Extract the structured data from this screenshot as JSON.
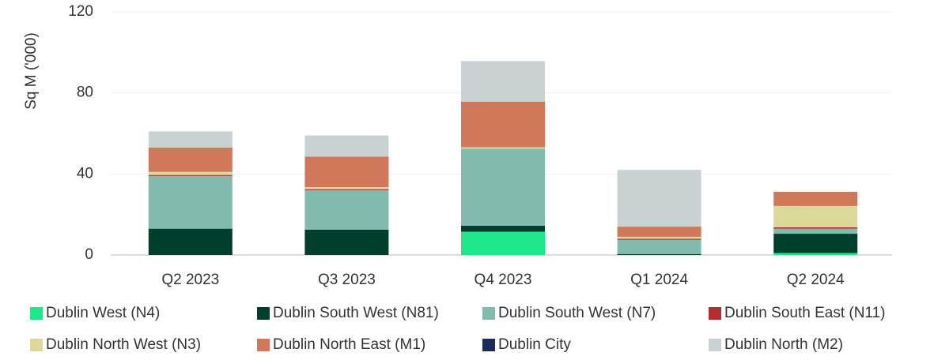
{
  "chart_data": {
    "type": "stacked_bar",
    "ylabel": "Sq M ('000)",
    "categories": [
      "Q2 2023",
      "Q3 2023",
      "Q4 2023",
      "Q1 2024",
      "Q2 2024"
    ],
    "series": [
      {
        "name": "Dublin West (N4)",
        "color": "#1de98b",
        "values": [
          0,
          0,
          11.5,
          0,
          1
        ]
      },
      {
        "name": "Dublin South West (N81)",
        "color": "#003f2d",
        "values": [
          13,
          12.5,
          3,
          0.5,
          9.5
        ]
      },
      {
        "name": "Dublin South West (N7)",
        "color": "#80bbad",
        "values": [
          26,
          19.5,
          38,
          7,
          2.5
        ]
      },
      {
        "name": "Dublin South East (N11)",
        "color": "#b32e2e",
        "values": [
          0.5,
          0.5,
          0,
          0.5,
          0.7
        ]
      },
      {
        "name": "Dublin North West (N3)",
        "color": "#dbd99a",
        "values": [
          1.5,
          1,
          0.7,
          1,
          10.5
        ]
      },
      {
        "name": "Dublin North East (M1)",
        "color": "#d2785a",
        "values": [
          12,
          15,
          22.5,
          5,
          7
        ]
      },
      {
        "name": "Dublin City",
        "color": "#1a2b5c",
        "values": [
          0,
          0,
          0,
          0,
          0
        ]
      },
      {
        "name": "Dublin North (M2)",
        "color": "#cad1d3",
        "values": [
          8,
          10.5,
          20,
          28,
          0
        ]
      }
    ],
    "ylim": [
      0,
      120
    ],
    "yticks": [
      0,
      40,
      80,
      120
    ],
    "grid": true
  }
}
